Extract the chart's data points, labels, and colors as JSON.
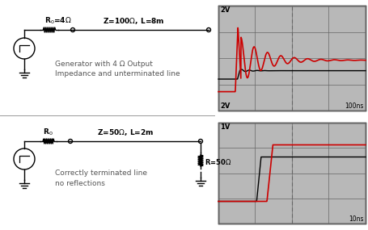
{
  "bg_color": "#ffffff",
  "text1": "Generator with 4 Ω Output\nImpedance and unterminated line",
  "text2": "Correctly terminated line\nno reflections",
  "scope1_label_top": "2V",
  "scope1_label_bot": "2V",
  "scope1_time": "100ns",
  "scope2_label_top": "1V",
  "scope2_time": "10ns",
  "r_label": "R=50Ω",
  "scope_bg": "#b8b8b8",
  "grid_color": "#666666",
  "line_color_black": "#000000",
  "line_color_red": "#cc0000",
  "text_color": "#555555",
  "circuit_color": "#000000"
}
